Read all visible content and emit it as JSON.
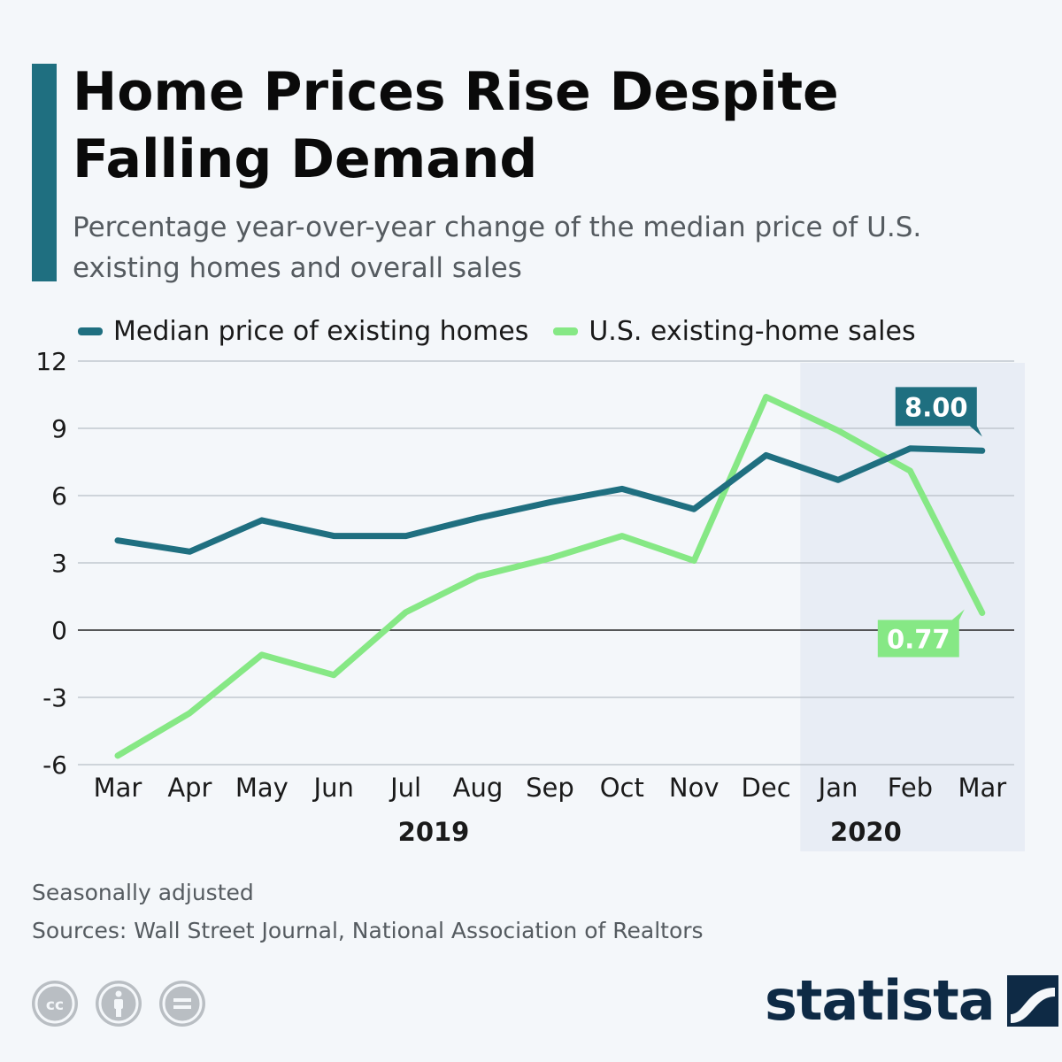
{
  "header": {
    "title": "Home Prices Rise Despite Falling Demand",
    "subtitle": "Percentage year-over-year change of the median price of U.S. existing homes and overall sales"
  },
  "legend": [
    {
      "label": "Median price of existing homes",
      "color": "#1f6f80"
    },
    {
      "label": "U.S. existing-home sales",
      "color": "#86e885"
    }
  ],
  "chart_data": {
    "type": "line",
    "title": "Home Prices Rise Despite Falling Demand",
    "subtitle": "Percentage year-over-year change of the median price of U.S. existing homes and overall sales",
    "categories": [
      "Mar",
      "Apr",
      "May",
      "Jun",
      "Jul",
      "Aug",
      "Sep",
      "Oct",
      "Nov",
      "Dec",
      "Jan",
      "Feb",
      "Mar"
    ],
    "year_labels": [
      {
        "label": "2019",
        "category_index": 5
      },
      {
        "label": "2020",
        "category_index": 11
      }
    ],
    "shaded_region": {
      "from_index": 10,
      "to_index": 12,
      "label": "2020"
    },
    "series": [
      {
        "name": "Median price of existing homes",
        "color": "#1f6f80",
        "values": [
          4.0,
          3.5,
          4.9,
          4.2,
          4.2,
          5.0,
          5.7,
          6.3,
          5.4,
          7.8,
          6.7,
          8.1,
          8.0
        ],
        "end_label": "8.00"
      },
      {
        "name": "U.S. existing-home sales",
        "color": "#86e885",
        "values": [
          -5.6,
          -3.7,
          -1.1,
          -2.0,
          0.8,
          2.4,
          3.2,
          4.2,
          3.1,
          10.4,
          8.9,
          7.1,
          0.77
        ],
        "end_label": "0.77"
      }
    ],
    "yticks": [
      12,
      9,
      6,
      3,
      0,
      -3,
      -6
    ],
    "ylim": [
      -6,
      12
    ],
    "grid": true,
    "legend_position": "top-left"
  },
  "notes": {
    "adjust": "Seasonally adjusted",
    "sources": "Sources: Wall Street Journal, National Association of Realtors"
  },
  "license_icons": [
    "cc-icon",
    "attribution-icon",
    "no-derivatives-icon"
  ],
  "brand": {
    "name": "statista"
  }
}
